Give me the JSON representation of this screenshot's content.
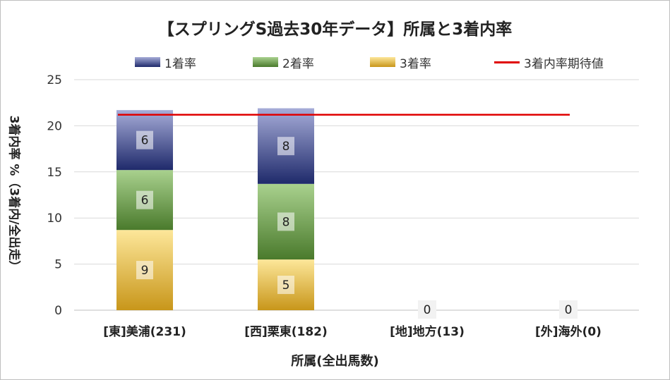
{
  "chart_data": {
    "type": "bar",
    "stacked": true,
    "title": "【スプリングS過去30年データ】所属と3着内率",
    "xlabel": "所属(全出馬数)",
    "ylabel": "3着内率 %（3着内/全出走）",
    "categories": [
      "[東]美浦(231)",
      "[西]栗東(182)",
      "[地]地方(13)",
      "[外]海外(0)"
    ],
    "series": [
      {
        "name": "3着率",
        "values": [
          8.7,
          5.5,
          0,
          0
        ],
        "labels": [
          "9",
          "5",
          "0",
          "0"
        ],
        "color_top": "#fde79a",
        "color_bottom": "#c8961a"
      },
      {
        "name": "2着率",
        "values": [
          6.5,
          8.2,
          0,
          0
        ],
        "labels": [
          "6",
          "8",
          "",
          ""
        ],
        "color_top": "#a9d18e",
        "color_bottom": "#4a7a2c"
      },
      {
        "name": "1着率",
        "values": [
          6.5,
          8.2,
          0,
          0
        ],
        "labels": [
          "6",
          "8",
          "",
          ""
        ],
        "color_top": "#a6acd8",
        "color_bottom": "#1f2a6b"
      }
    ],
    "reference_line": {
      "name": "3着内率期待値",
      "value": 21.2,
      "color": "#e00000"
    },
    "ylim": [
      0,
      25
    ],
    "yticks": [
      0,
      5,
      10,
      15,
      20,
      25
    ],
    "grid": true,
    "legend_position": "top",
    "legend_order": [
      "1着率",
      "2着率",
      "3着率",
      "3着内率期待値"
    ]
  }
}
